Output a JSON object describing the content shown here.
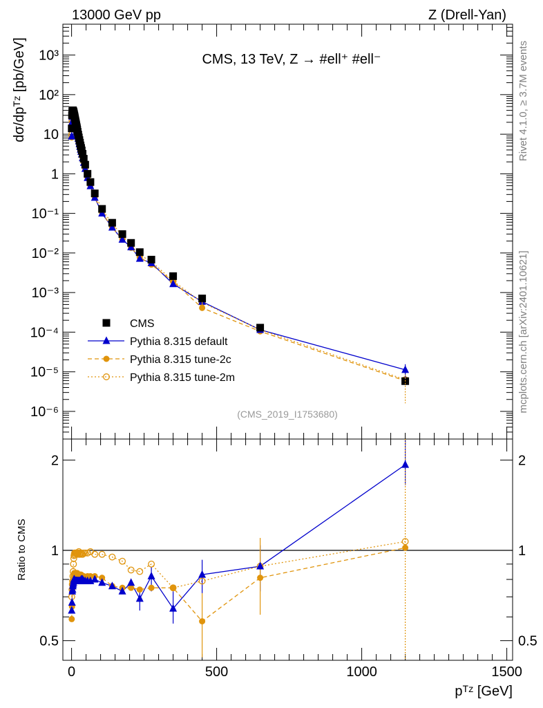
{
  "header": {
    "left": "13000 GeV pp",
    "right": "Z (Drell-Yan)"
  },
  "side_labels": {
    "rivet": "Rivet 4.1.0, ≥ 3.7M events",
    "mcplots": "mcplots.cern.ch [arXiv:2401.10621]"
  },
  "colors": {
    "data": "#000000",
    "default": "#0000cc",
    "tune2c": "#e0940c",
    "tune2m": "#e0940c"
  },
  "chart_data": [
    {
      "type": "scatter",
      "panel": "main",
      "title": "CMS, 13 TeV, Z →  #ell⁺ #ell⁻",
      "watermark": "(CMS_2019_I1753680)",
      "xlabel": "",
      "ylabel": "dσ/dpᵀᶻ [pb/GeV]",
      "yscale": "log",
      "xlim": [
        -30,
        1520
      ],
      "ylim": [
        2e-07,
        6000
      ],
      "ytick_labels": [
        "10⁻⁶",
        "10⁻⁵",
        "10⁻⁴",
        "10⁻³",
        "10⁻²",
        "10⁻¹",
        "1",
        "10",
        "10²",
        "10³"
      ],
      "legend_position": "lower-left",
      "x": [
        0.5,
        1.5,
        2.5,
        3.5,
        4.5,
        5.5,
        6.5,
        7.5,
        8.5,
        9.5,
        10.5,
        11.5,
        12.5,
        13.5,
        14.5,
        15.5,
        16.5,
        17.5,
        18.5,
        19.5,
        21,
        23,
        25,
        27,
        29,
        31,
        33,
        35,
        38,
        42,
        47,
        55,
        65,
        80,
        105,
        140,
        175,
        205,
        235,
        275,
        350,
        450,
        650,
        1150
      ],
      "series": [
        {
          "name": "CMS",
          "marker": "square",
          "values": [
            14,
            30,
            38,
            40,
            40,
            39,
            37,
            35,
            32.5,
            30,
            28,
            25.5,
            23.5,
            21.5,
            19.8,
            18.2,
            16.8,
            15.4,
            14.2,
            13,
            11.5,
            9.8,
            8.3,
            7.1,
            6.1,
            5.2,
            4.5,
            3.9,
            3.2,
            2.4,
            1.7,
            1.0,
            0.62,
            0.32,
            0.13,
            0.058,
            0.03,
            0.018,
            0.0105,
            0.0068,
            0.0026,
            0.00071,
            0.00013,
            5.8e-06
          ]
        },
        {
          "name": "Pythia 8.315 default",
          "marker": "triangle",
          "line": "solid",
          "values": [
            8.8,
            20.1,
            27.7,
            29.6,
            30.4,
            30.0,
            28.9,
            27.7,
            26.0,
            24.0,
            22.1,
            20.1,
            18.6,
            17.0,
            15.6,
            14.4,
            13.3,
            12.2,
            11.2,
            10.3,
            9.1,
            7.7,
            6.6,
            5.6,
            4.8,
            4.1,
            3.6,
            3.1,
            2.5,
            1.9,
            1.34,
            0.79,
            0.49,
            0.25,
            0.1,
            0.044,
            0.0218,
            0.014,
            0.0072,
            0.0056,
            0.00165,
            0.00059,
            0.000115,
            1.12e-05
          ]
        },
        {
          "name": "Pythia 8.315 tune-2c",
          "marker": "circle",
          "line": "dashed",
          "values": [
            8.3,
            19.5,
            27.7,
            30.0,
            30.8,
            30.8,
            29.6,
            28.7,
            27.0,
            25.2,
            23.5,
            21.4,
            19.7,
            18.1,
            16.6,
            15.3,
            14.1,
            12.9,
            11.9,
            10.9,
            9.4,
            8.1,
            6.8,
            5.8,
            5.0,
            4.3,
            3.7,
            3.2,
            2.6,
            1.96,
            1.38,
            0.82,
            0.51,
            0.26,
            0.105,
            0.044,
            0.0225,
            0.0135,
            0.0078,
            0.0051,
            0.0019,
            0.00041,
            0.000105,
            5.9e-06
          ]
        },
        {
          "name": "Pythia 8.315 tune-2m",
          "marker": "open-circle",
          "line": "dotted",
          "values": [
            9.8,
            22.2,
            29.3,
            31.6,
            32.8,
            33.2,
            33.3,
            32.9,
            31.2,
            29.1,
            27.4,
            24.9,
            23.0,
            21.1,
            19.4,
            17.9,
            16.5,
            15.1,
            13.9,
            12.8,
            11.2,
            9.6,
            8.2,
            6.9,
            5.9,
            5.1,
            4.4,
            3.8,
            3.1,
            2.35,
            1.66,
            0.98,
            0.61,
            0.31,
            0.126,
            0.055,
            0.0275,
            0.0155,
            0.0089,
            0.0061,
            0.00195,
            0.00056,
            0.000115,
            6.3e-06
          ]
        }
      ]
    },
    {
      "type": "scatter",
      "panel": "ratio",
      "xlabel": "pᵀᶻ [GeV]",
      "ylabel": "Ratio to CMS",
      "yscale": "log",
      "xlim": [
        -30,
        1520
      ],
      "ylim": [
        0.43,
        2.35
      ],
      "xticks": [
        0,
        500,
        1000,
        1500
      ],
      "yticks": [
        0.5,
        1,
        2
      ],
      "reference_line": 1,
      "x": [
        0.5,
        1.5,
        2.5,
        3.5,
        4.5,
        5.5,
        6.5,
        7.5,
        8.5,
        9.5,
        10.5,
        11.5,
        12.5,
        13.5,
        14.5,
        15.5,
        16.5,
        17.5,
        18.5,
        19.5,
        21,
        23,
        25,
        27,
        29,
        31,
        33,
        35,
        38,
        42,
        47,
        55,
        65,
        80,
        105,
        140,
        175,
        205,
        235,
        275,
        350,
        450,
        650,
        1150
      ],
      "series": [
        {
          "name": "Pythia 8.315 default",
          "values": [
            0.63,
            0.67,
            0.73,
            0.74,
            0.76,
            0.77,
            0.78,
            0.79,
            0.8,
            0.8,
            0.79,
            0.79,
            0.79,
            0.79,
            0.79,
            0.79,
            0.79,
            0.79,
            0.79,
            0.79,
            0.79,
            0.79,
            0.79,
            0.79,
            0.79,
            0.79,
            0.8,
            0.8,
            0.8,
            0.79,
            0.79,
            0.79,
            0.79,
            0.8,
            0.78,
            0.76,
            0.73,
            0.78,
            0.69,
            0.82,
            0.64,
            0.83,
            0.885,
            1.93
          ]
        },
        {
          "name": "Pythia 8.315 tune-2c",
          "values": [
            0.59,
            0.65,
            0.73,
            0.75,
            0.77,
            0.79,
            0.8,
            0.82,
            0.83,
            0.84,
            0.84,
            0.84,
            0.84,
            0.84,
            0.84,
            0.84,
            0.84,
            0.84,
            0.84,
            0.84,
            0.82,
            0.83,
            0.82,
            0.82,
            0.82,
            0.83,
            0.83,
            0.82,
            0.82,
            0.82,
            0.81,
            0.82,
            0.82,
            0.82,
            0.81,
            0.76,
            0.75,
            0.75,
            0.74,
            0.75,
            0.75,
            0.58,
            0.81,
            1.02
          ]
        },
        {
          "name": "Pythia 8.315 tune-2m",
          "values": [
            0.7,
            0.74,
            0.77,
            0.79,
            0.82,
            0.85,
            0.9,
            0.94,
            0.96,
            0.97,
            0.98,
            0.98,
            0.98,
            0.98,
            0.98,
            0.98,
            0.98,
            0.98,
            0.98,
            0.98,
            0.97,
            0.98,
            0.99,
            0.97,
            0.97,
            0.98,
            0.98,
            0.97,
            0.97,
            0.98,
            0.98,
            0.98,
            0.99,
            0.97,
            0.97,
            0.95,
            0.92,
            0.86,
            0.85,
            0.9,
            0.75,
            0.79,
            0.885,
            1.07
          ]
        }
      ]
    }
  ]
}
